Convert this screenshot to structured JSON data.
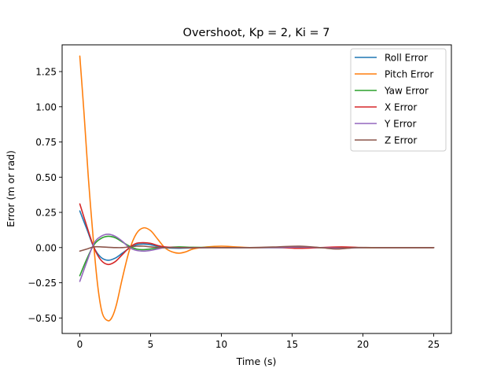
{
  "chart_data": {
    "type": "line",
    "title": "Overshoot, Kp = 2, Ki = 7",
    "xlabel": "Time (s)",
    "ylabel": "Error (m or rad)",
    "xlim": [
      -1.25,
      26.25
    ],
    "ylim": [
      -0.61,
      1.44
    ],
    "x_ticks": [
      0,
      5,
      10,
      15,
      20,
      25
    ],
    "x_tick_labels": [
      "0",
      "5",
      "10",
      "15",
      "20",
      "25"
    ],
    "y_ticks": [
      -0.5,
      -0.25,
      0.0,
      0.25,
      0.5,
      0.75,
      1.0,
      1.25
    ],
    "y_tick_labels": [
      "−0.50",
      "−0.25",
      "0.00",
      "0.25",
      "0.50",
      "0.75",
      "1.00",
      "1.25"
    ],
    "grid": false,
    "legend_position": "top-right",
    "series": [
      {
        "name": "Roll Error",
        "color": "#1f77b4",
        "x": [
          0,
          0.5,
          1,
          1.5,
          2,
          2.5,
          3,
          3.5,
          4,
          4.5,
          5,
          6,
          7,
          8,
          10,
          12,
          15,
          18,
          21,
          25
        ],
        "y": [
          0.26,
          0.13,
          0.0,
          -0.07,
          -0.09,
          -0.075,
          -0.04,
          -0.005,
          0.02,
          0.025,
          0.02,
          0.0,
          -0.005,
          -0.002,
          0.0,
          0.0,
          0.0,
          0.0,
          0.0,
          0.0
        ]
      },
      {
        "name": "Pitch Error",
        "color": "#ff7f0e",
        "x": [
          0,
          0.3,
          0.6,
          1,
          1.3,
          1.6,
          2,
          2.3,
          2.6,
          3,
          3.5,
          4,
          4.5,
          5,
          5.5,
          6,
          6.5,
          7,
          7.5,
          8,
          9,
          10,
          11,
          12,
          14,
          16,
          18,
          20,
          22,
          25
        ],
        "y": [
          1.36,
          0.95,
          0.5,
          0.0,
          -0.3,
          -0.47,
          -0.52,
          -0.49,
          -0.4,
          -0.22,
          -0.02,
          0.1,
          0.14,
          0.12,
          0.06,
          0.0,
          -0.03,
          -0.04,
          -0.03,
          -0.01,
          0.005,
          0.01,
          0.005,
          0.0,
          0.0,
          0.0,
          0.0,
          0.0,
          0.0,
          0.0
        ]
      },
      {
        "name": "Yaw Error",
        "color": "#2ca02c",
        "x": [
          0,
          0.5,
          1,
          1.5,
          2,
          2.5,
          3,
          3.5,
          4,
          4.5,
          5,
          6,
          7,
          8,
          10,
          12,
          15,
          18,
          21,
          25
        ],
        "y": [
          -0.2,
          -0.08,
          0.02,
          0.065,
          0.08,
          0.07,
          0.04,
          0.01,
          -0.01,
          -0.015,
          -0.01,
          0.0,
          0.005,
          0.002,
          0.0,
          0.0,
          0.0,
          0.0,
          0.0,
          0.0
        ]
      },
      {
        "name": "X Error",
        "color": "#d62728",
        "x": [
          0,
          0.5,
          1,
          1.5,
          2,
          2.5,
          3,
          3.5,
          4,
          4.5,
          5,
          5.5,
          6,
          7,
          8,
          10,
          12,
          14,
          15.5,
          17,
          18.5,
          20,
          22,
          25
        ],
        "y": [
          0.31,
          0.15,
          0.0,
          -0.09,
          -0.12,
          -0.1,
          -0.05,
          0.0,
          0.03,
          0.035,
          0.03,
          0.015,
          0.005,
          0.0,
          0.0,
          0.0,
          0.0,
          0.0,
          -0.005,
          0.0,
          0.005,
          0.0,
          0.0,
          0.0
        ]
      },
      {
        "name": "Y Error",
        "color": "#9467bd",
        "x": [
          0,
          0.5,
          1,
          1.5,
          2,
          2.5,
          3,
          3.5,
          4,
          4.5,
          5,
          5.5,
          6,
          7,
          8,
          10,
          12,
          14,
          15.5,
          17,
          18.5,
          20,
          22,
          25
        ],
        "y": [
          -0.24,
          -0.1,
          0.03,
          0.08,
          0.095,
          0.08,
          0.045,
          0.0,
          -0.02,
          -0.025,
          -0.02,
          -0.01,
          0.0,
          0.0,
          0.0,
          0.0,
          0.0,
          0.0,
          0.005,
          0.0,
          -0.005,
          0.0,
          0.0,
          0.0
        ]
      },
      {
        "name": "Z Error",
        "color": "#8c564b",
        "x": [
          0,
          0.5,
          1,
          1.5,
          2,
          2.5,
          3,
          3.5,
          4,
          4.5,
          5,
          6,
          7,
          8,
          10,
          12,
          14,
          15.5,
          17,
          18.2,
          19.5,
          21,
          25
        ],
        "y": [
          -0.025,
          -0.01,
          0.005,
          0.005,
          0.002,
          0.0,
          0.0,
          0.005,
          0.01,
          0.01,
          0.005,
          0.0,
          0.0,
          0.0,
          0.0,
          0.0,
          0.005,
          0.01,
          0.0,
          -0.01,
          0.0,
          0.0,
          0.0
        ]
      }
    ]
  }
}
